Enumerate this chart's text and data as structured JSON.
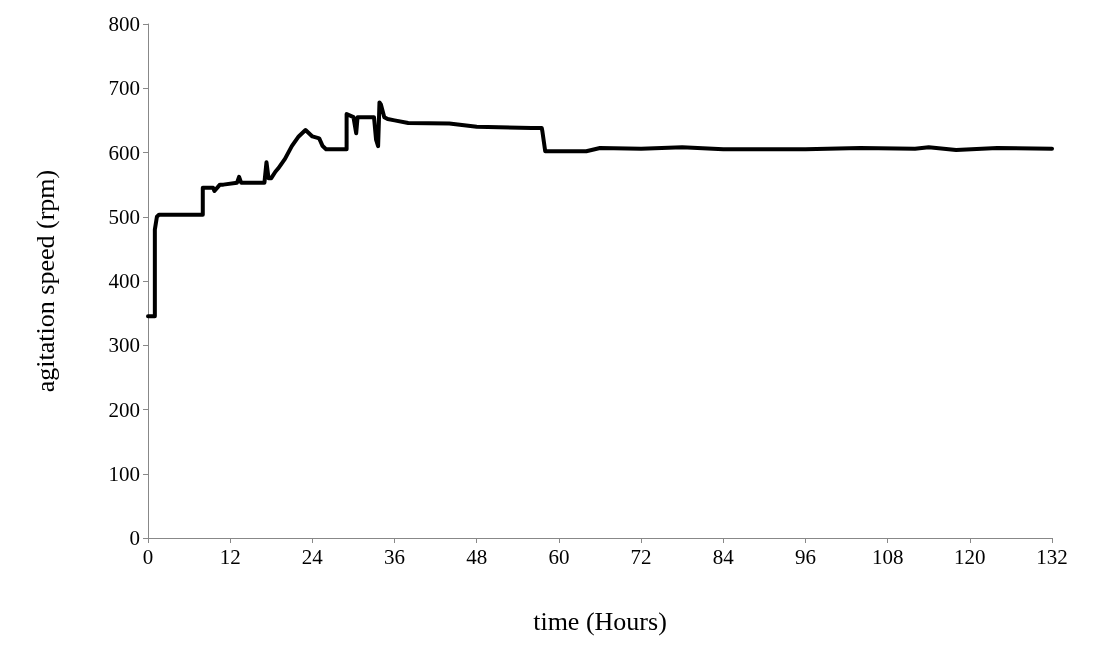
{
  "chart_data": {
    "type": "line",
    "xlabel": "time (Hours)",
    "ylabel": "agitation speed (rpm)",
    "x": [
      0,
      1,
      1,
      1.3,
      1.6,
      8,
      8,
      9.5,
      9.7,
      10.5,
      11,
      13,
      13.3,
      13.6,
      17,
      17.3,
      17.6,
      18,
      18.6,
      19,
      20,
      21,
      22,
      23,
      23.5,
      24,
      25,
      25.5,
      26,
      29,
      29,
      30,
      30.4,
      30.6,
      33,
      33.3,
      33.6,
      33.8,
      34,
      34.5,
      35,
      36,
      38,
      44,
      48,
      56,
      57.5,
      57.6,
      58,
      64,
      66,
      72,
      78,
      84,
      96,
      104,
      112,
      114,
      118,
      124,
      132
    ],
    "series": [
      {
        "color": "#000000",
        "values": [
          345,
          345,
          480,
          500,
          503,
          503,
          545,
          545,
          540,
          550,
          550,
          553,
          562,
          553,
          553,
          585,
          560,
          560,
          570,
          575,
          590,
          610,
          625,
          635,
          630,
          625,
          622,
          610,
          605,
          605,
          660,
          655,
          630,
          655,
          655,
          620,
          610,
          678,
          675,
          655,
          652,
          650,
          646,
          645,
          640,
          638,
          638,
          632,
          602,
          602,
          607,
          606,
          608,
          605,
          605,
          607,
          606,
          608,
          604,
          607,
          606
        ]
      }
    ],
    "xlim": [
      0,
      132
    ],
    "xticks": [
      0,
      12,
      24,
      36,
      48,
      60,
      72,
      84,
      96,
      108,
      120,
      132
    ],
    "ylim": [
      0,
      800
    ],
    "yticks": [
      0,
      100,
      200,
      300,
      400,
      500,
      600,
      700,
      800
    ],
    "grid": false,
    "marker": "none",
    "line_style": "solid"
  }
}
